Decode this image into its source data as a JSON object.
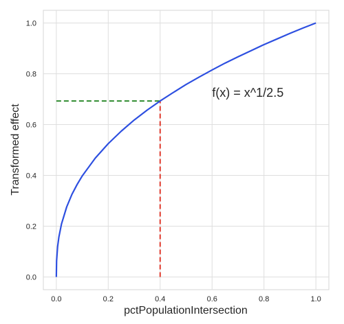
{
  "chart_data": {
    "type": "line",
    "title": "",
    "xlabel": "pctPopulationIntersection",
    "ylabel": "Transformed effect",
    "xlim": [
      -0.05,
      1.05
    ],
    "ylim": [
      -0.05,
      1.05
    ],
    "xticks": [
      0.0,
      0.2,
      0.4,
      0.6,
      0.8,
      1.0
    ],
    "yticks": [
      0.0,
      0.2,
      0.4,
      0.6,
      0.8,
      1.0
    ],
    "xtick_labels": [
      "0.0",
      "0.2",
      "0.4",
      "0.6",
      "0.8",
      "1.0"
    ],
    "ytick_labels": [
      "0.0",
      "0.2",
      "0.4",
      "0.6",
      "0.8",
      "1.0"
    ],
    "grid": true,
    "series": [
      {
        "color": "#2d4fe0",
        "x": [
          0.0,
          0.001,
          0.005,
          0.01,
          0.02,
          0.04,
          0.06,
          0.08,
          0.1,
          0.15,
          0.2,
          0.25,
          0.3,
          0.35,
          0.4,
          0.45,
          0.5,
          0.55,
          0.6,
          0.65,
          0.7,
          0.75,
          0.8,
          0.85,
          0.9,
          0.95,
          1.0
        ],
        "y": [
          0.0,
          0.063,
          0.12,
          0.158,
          0.209,
          0.276,
          0.325,
          0.364,
          0.398,
          0.468,
          0.525,
          0.574,
          0.618,
          0.657,
          0.693,
          0.726,
          0.758,
          0.787,
          0.815,
          0.842,
          0.867,
          0.891,
          0.915,
          0.937,
          0.959,
          0.98,
          1.0
        ]
      }
    ],
    "reference_lines": [
      {
        "orientation": "horizontal",
        "y": 0.693,
        "x_from": 0.0,
        "x_to": 0.4,
        "color": "#2e8b2e",
        "style": "dashed"
      },
      {
        "orientation": "vertical",
        "x": 0.4,
        "y_from": 0.0,
        "y_to": 0.693,
        "color": "#e03b2e",
        "style": "dashed"
      }
    ],
    "annotations": [
      {
        "text": "f(x) = x^1/2.5",
        "x": 0.6,
        "y": 0.71
      }
    ]
  }
}
